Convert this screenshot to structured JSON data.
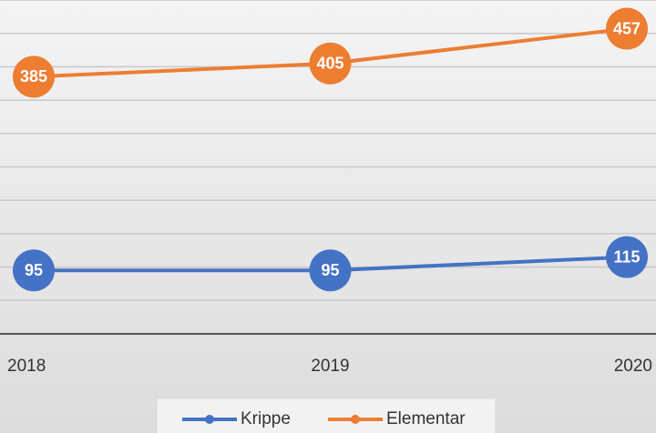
{
  "chart_data": {
    "type": "line",
    "categories": [
      "2018",
      "2019",
      "2020"
    ],
    "series": [
      {
        "name": "Krippe",
        "color": "#4472c4",
        "values": [
          95,
          95,
          115
        ]
      },
      {
        "name": "Elementar",
        "color": "#ed7d31",
        "values": [
          385,
          405,
          457
        ]
      }
    ],
    "ylim": [
      0,
      500
    ],
    "yticks": [
      0,
      50,
      100,
      150,
      200,
      250,
      300,
      350,
      400,
      450,
      500
    ],
    "grid": true,
    "legend": "bottom"
  }
}
